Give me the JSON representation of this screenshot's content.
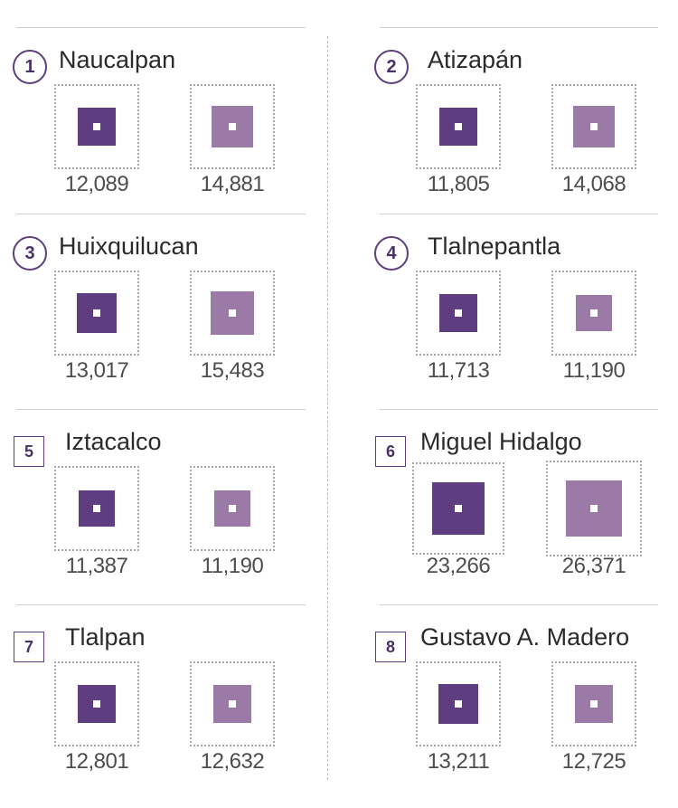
{
  "chart_data": {
    "type": "proportional-squares",
    "panels": [
      {
        "number": "1",
        "name": "Naucalpan",
        "values": [
          12089,
          14881
        ],
        "labels": [
          "12,089",
          "14,881"
        ]
      },
      {
        "number": "2",
        "name": "Atizapán",
        "values": [
          11805,
          14068
        ],
        "labels": [
          "11,805",
          "14,068"
        ]
      },
      {
        "number": "3",
        "name": "Huixquilucan",
        "values": [
          13017,
          15483
        ],
        "labels": [
          "13,017",
          "15,483"
        ]
      },
      {
        "number": "4",
        "name": "Tlalnepantla",
        "values": [
          11713,
          11190
        ],
        "labels": [
          "11,713",
          "11,190"
        ]
      },
      {
        "number": "5",
        "name": "Iztacalco",
        "values": [
          11387,
          11190
        ],
        "labels": [
          "11,387",
          "11,190"
        ]
      },
      {
        "number": "6",
        "name": "Miguel Hidalgo",
        "values": [
          23266,
          26371
        ],
        "labels": [
          "23,266",
          "26,371"
        ]
      },
      {
        "number": "7",
        "name": "Tlalpan",
        "values": [
          12801,
          12632
        ],
        "labels": [
          "12,801",
          "12,632"
        ]
      },
      {
        "number": "8",
        "name": "Gustavo A. Madero",
        "values": [
          13211,
          12725
        ],
        "labels": [
          "13,211",
          "12,725"
        ]
      }
    ],
    "colors": {
      "first": "#5e3d80",
      "second": "#9b7aa8",
      "badge": "#5c3f7e"
    }
  }
}
